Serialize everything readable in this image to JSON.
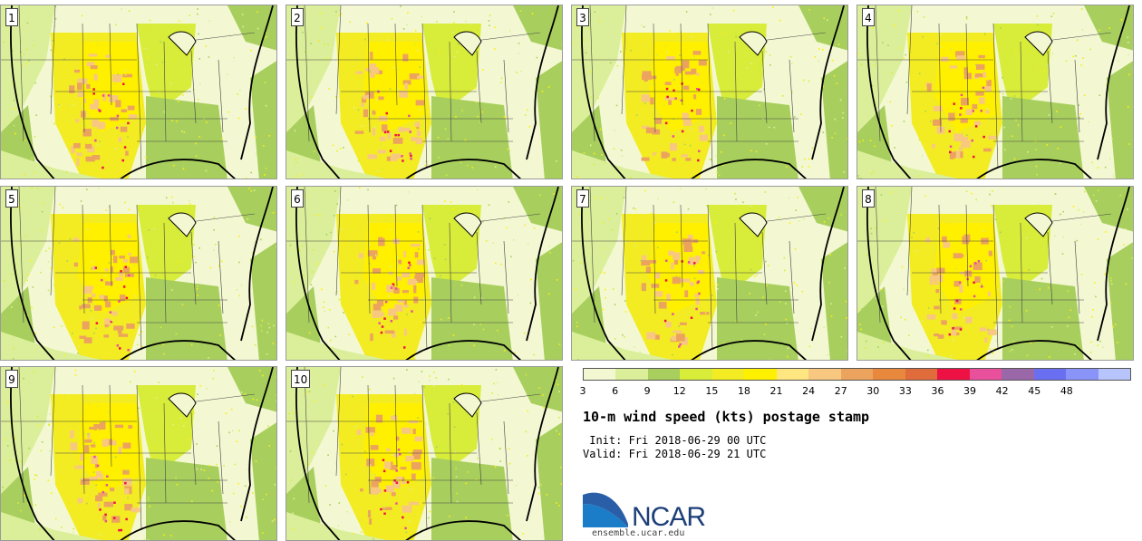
{
  "panels": [
    {
      "label": "1"
    },
    {
      "label": "2"
    },
    {
      "label": "3"
    },
    {
      "label": "4"
    },
    {
      "label": "5"
    },
    {
      "label": "6"
    },
    {
      "label": "7"
    },
    {
      "label": "8"
    },
    {
      "label": "9"
    },
    {
      "label": "10"
    }
  ],
  "colorbar": {
    "ticks": [
      "3",
      "6",
      "9",
      "12",
      "15",
      "18",
      "21",
      "24",
      "27",
      "30",
      "33",
      "36",
      "39",
      "42",
      "45",
      "48"
    ],
    "colors": [
      "#f3f8d2",
      "#dbef9a",
      "#a8cf5e",
      "#d8ec3a",
      "#f3ec23",
      "#fff000",
      "#ffe680",
      "#f8c880",
      "#eca35e",
      "#e8883c",
      "#e06c3c",
      "#ee1144",
      "#e8509c",
      "#9a68a8",
      "#6a6ef0",
      "#8a94f8",
      "#b8c4fc"
    ]
  },
  "title": "10-m wind speed (kts) postage stamp",
  "init_label": " Init: Fri 2018-06-29 00 UTC",
  "valid_label": "Valid: Fri 2018-06-29 21 UTC",
  "logo_text": "NCAR",
  "url": "ensemble.ucar.edu"
}
